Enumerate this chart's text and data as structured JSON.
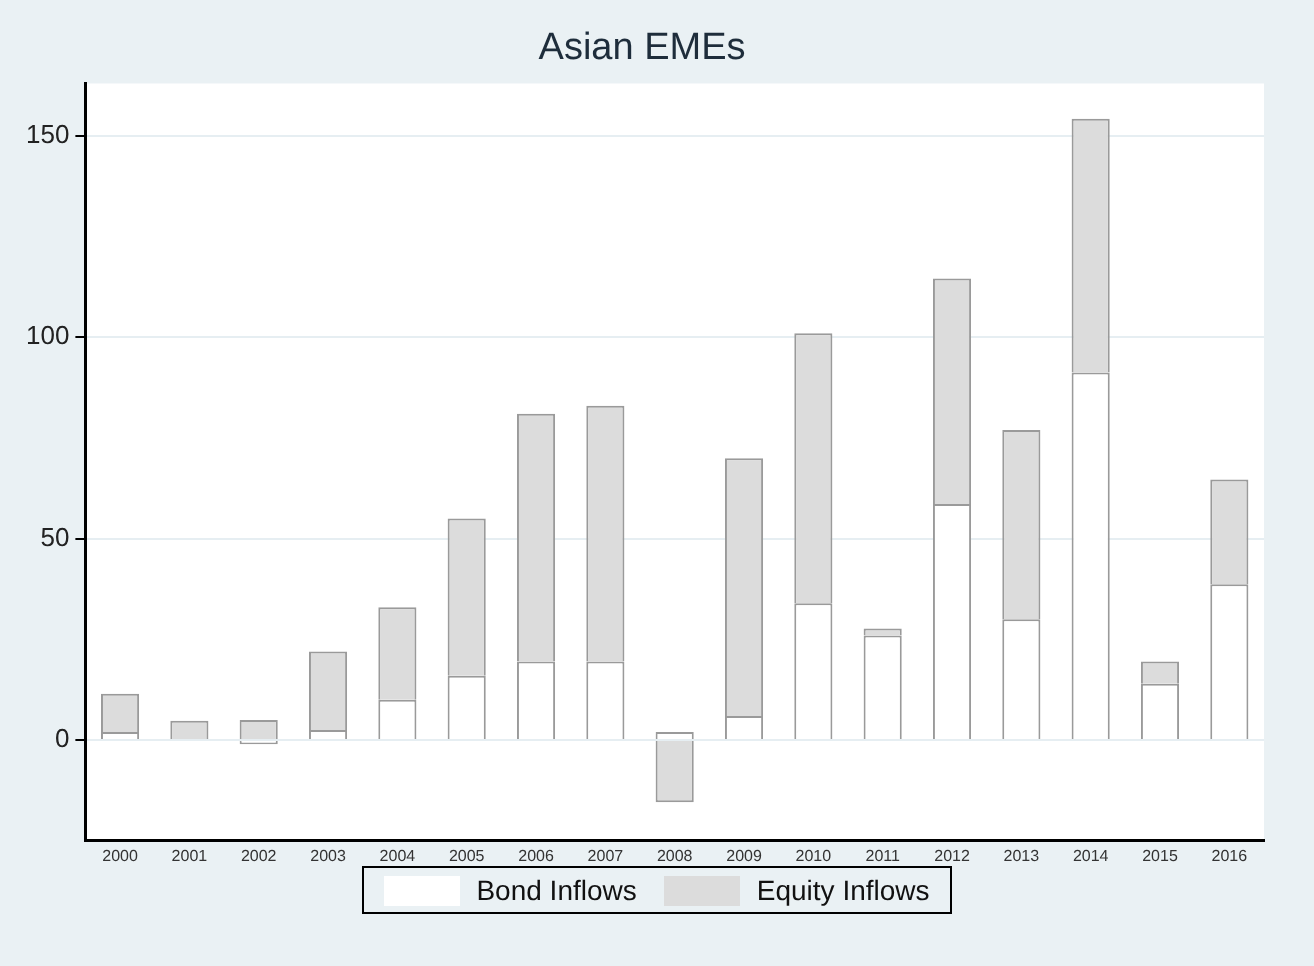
{
  "chart_data": {
    "type": "bar",
    "title": "Asian EMEs",
    "stacked": true,
    "categories": [
      "2000",
      "2001",
      "2002",
      "2003",
      "2004",
      "2005",
      "2006",
      "2007",
      "2008",
      "2009",
      "2010",
      "2011",
      "2012",
      "2013",
      "2014",
      "2015",
      "2016"
    ],
    "series": [
      {
        "name": "Bond Inflows",
        "color": "#ffffff",
        "values": [
          2,
          0.3,
          -1,
          2.5,
          10,
          16,
          19.5,
          19.5,
          2,
          6,
          34,
          26,
          58.6,
          30,
          91.3,
          14,
          38.7
        ]
      },
      {
        "name": "Equity Inflows",
        "color": "#dcdcdc",
        "values": [
          9.5,
          4.5,
          5,
          19.5,
          23,
          39,
          61.5,
          63.5,
          -15.4,
          64,
          67,
          1.7,
          56,
          47,
          63,
          5.5,
          26
        ]
      }
    ],
    "ylim": [
      -25,
      163
    ],
    "yticks": [
      0,
      50,
      100,
      150
    ],
    "grid": "y",
    "legend": "bottom"
  }
}
